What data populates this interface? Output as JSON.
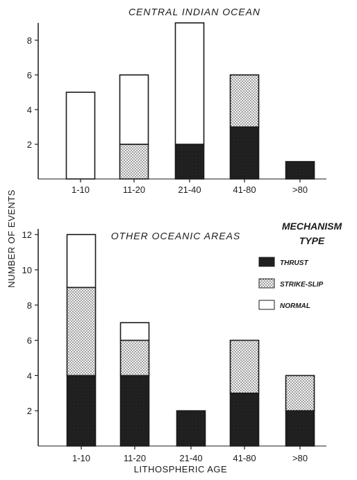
{
  "chart_data": [
    {
      "type": "bar",
      "stacked": true,
      "title": "CENTRAL INDIAN OCEAN",
      "categories": [
        "1-10",
        "11-20",
        "21-40",
        "41-80",
        ">80"
      ],
      "series": [
        {
          "name": "THRUST",
          "values": [
            0,
            0,
            2,
            3,
            1
          ]
        },
        {
          "name": "STRIKE-SLIP",
          "values": [
            0,
            2,
            0,
            3,
            0
          ]
        },
        {
          "name": "NORMAL",
          "values": [
            5,
            4,
            7,
            0,
            0
          ]
        }
      ],
      "yticks": [
        2,
        4,
        6,
        8
      ],
      "ylim": [
        0,
        9
      ]
    },
    {
      "type": "bar",
      "stacked": true,
      "title": "OTHER OCEANIC AREAS",
      "categories": [
        "1-10",
        "11-20",
        "21-40",
        "41-80",
        ">80"
      ],
      "series": [
        {
          "name": "THRUST",
          "values": [
            4,
            4,
            2,
            3,
            2
          ]
        },
        {
          "name": "STRIKE-SLIP",
          "values": [
            5,
            2,
            0,
            3,
            2
          ]
        },
        {
          "name": "NORMAL",
          "values": [
            3,
            1,
            0,
            0,
            0
          ]
        }
      ],
      "yticks": [
        2,
        4,
        6,
        8,
        10,
        12
      ],
      "ylim": [
        0,
        12.5
      ]
    }
  ],
  "shared_ylabel": "NUMBER OF EVENTS",
  "shared_xlabel": "LITHOSPHERIC AGE",
  "legend": {
    "title_line1": "MECHANISM",
    "title_line2": "TYPE",
    "items": [
      {
        "label": "THRUST",
        "fill": "thrust"
      },
      {
        "label": "STRIKE-SLIP",
        "fill": "strike"
      },
      {
        "label": "NORMAL",
        "fill": "normal"
      }
    ]
  },
  "colors": {
    "thrust": "#1e1e1e",
    "strike": "#f2f2f2",
    "normal": "#ffffff",
    "ink": "#1a1a1a"
  }
}
